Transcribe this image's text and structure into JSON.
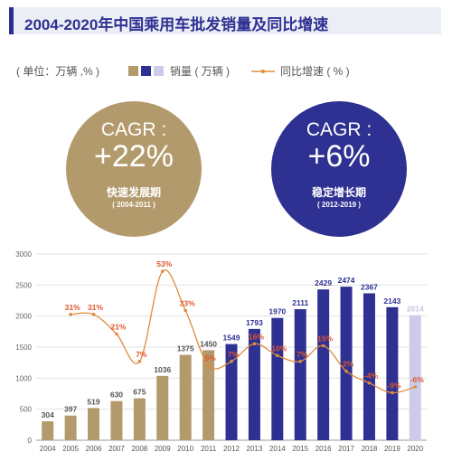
{
  "title": "2004-2020年中国乘用车批发销量及同比增速",
  "legend": {
    "unit_label": "( 单位：万辆 ,% )",
    "sales_label": "销量 ( 万辆 )",
    "growth_label": "同比增速 ( % )"
  },
  "circles": [
    {
      "cagr_label": "CAGR :",
      "value": "+22%",
      "phase": "快速发展期",
      "period": "( 2004-2011 )",
      "color": "#b39a6c"
    },
    {
      "cagr_label": "CAGR :",
      "value": "+6%",
      "phase": "稳定增长期",
      "period": "( 2012-2019 )",
      "color": "#2e3192"
    }
  ],
  "colors": {
    "gold": "#b39a6c",
    "navy": "#2e3192",
    "lavender": "#ccccea",
    "line": "#e08a3a",
    "label_red": "#e0562f"
  },
  "chart_data": {
    "type": "bar",
    "categories": [
      "2004",
      "2005",
      "2006",
      "2007",
      "2008",
      "2009",
      "2010",
      "2011",
      "2012",
      "2013",
      "2014",
      "2015",
      "2016",
      "2017",
      "2018",
      "2019",
      "2020"
    ],
    "series": [
      {
        "name": "销量 ( 万辆 )",
        "type": "bar",
        "values": [
          304,
          397,
          519,
          630,
          675,
          1036,
          1375,
          1450,
          1549,
          1793,
          1970,
          2111,
          2429,
          2474,
          2367,
          2143,
          2014
        ],
        "labels": [
          "304",
          "397",
          "519",
          "630",
          "675",
          "1036",
          "1375",
          "1450",
          "1549",
          "1793",
          "1970",
          "2111",
          "2429",
          "2474",
          "2367",
          "2143",
          "2014"
        ],
        "phases": [
          "gold",
          "gold",
          "gold",
          "gold",
          "gold",
          "gold",
          "gold",
          "gold",
          "navy",
          "navy",
          "navy",
          "navy",
          "navy",
          "navy",
          "navy",
          "navy",
          "lavender"
        ]
      },
      {
        "name": "同比增速 ( % )",
        "type": "line",
        "values": [
          null,
          31,
          31,
          21,
          7,
          53,
          33,
          5,
          7,
          16,
          10,
          7,
          15,
          2,
          -4,
          -9,
          -6
        ],
        "labels": [
          "",
          "31%",
          "31%",
          "21%",
          "7%",
          "53%",
          "33%",
          "5%",
          "7%",
          "16%",
          "10%",
          "7%",
          "15%",
          "2%",
          "-4%",
          "-9%",
          "-6%"
        ]
      }
    ],
    "y_ticks": [
      "0",
      "500",
      "1000",
      "1500",
      "2000",
      "2500",
      "3000"
    ],
    "ylim": [
      0,
      3000
    ],
    "grid": true
  }
}
